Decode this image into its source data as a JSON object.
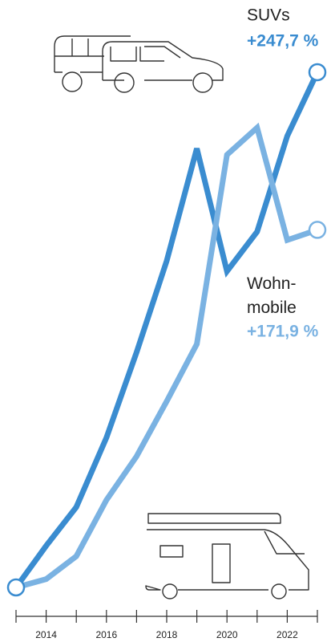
{
  "chart_data": {
    "type": "line",
    "x": [
      2013,
      2014,
      2015,
      2016,
      2017,
      2018,
      2019,
      2020,
      2021,
      2022,
      2023
    ],
    "xlim": [
      2013,
      2023
    ],
    "xticks": [
      2014,
      2016,
      2018,
      2020,
      2022
    ],
    "ylim": [
      0,
      250
    ],
    "series": [
      {
        "name": "SUVs",
        "color": "#3a8cd0",
        "values": [
          0,
          20,
          38.6,
          72,
          113,
          157,
          211,
          152,
          171,
          217,
          247.7
        ],
        "value_labels": [
          null,
          null,
          null,
          null,
          null,
          null,
          null,
          null,
          null,
          null,
          "+247,7 %"
        ]
      },
      {
        "name": "Wohn-\nmobile",
        "color": "#7ab2e2",
        "values": [
          0,
          4,
          15,
          42,
          63,
          89.5,
          117,
          208,
          221,
          167,
          171.9
        ],
        "value_labels": [
          null,
          null,
          null,
          null,
          null,
          null,
          null,
          null,
          null,
          null,
          "+171,9 %"
        ]
      }
    ]
  }
}
